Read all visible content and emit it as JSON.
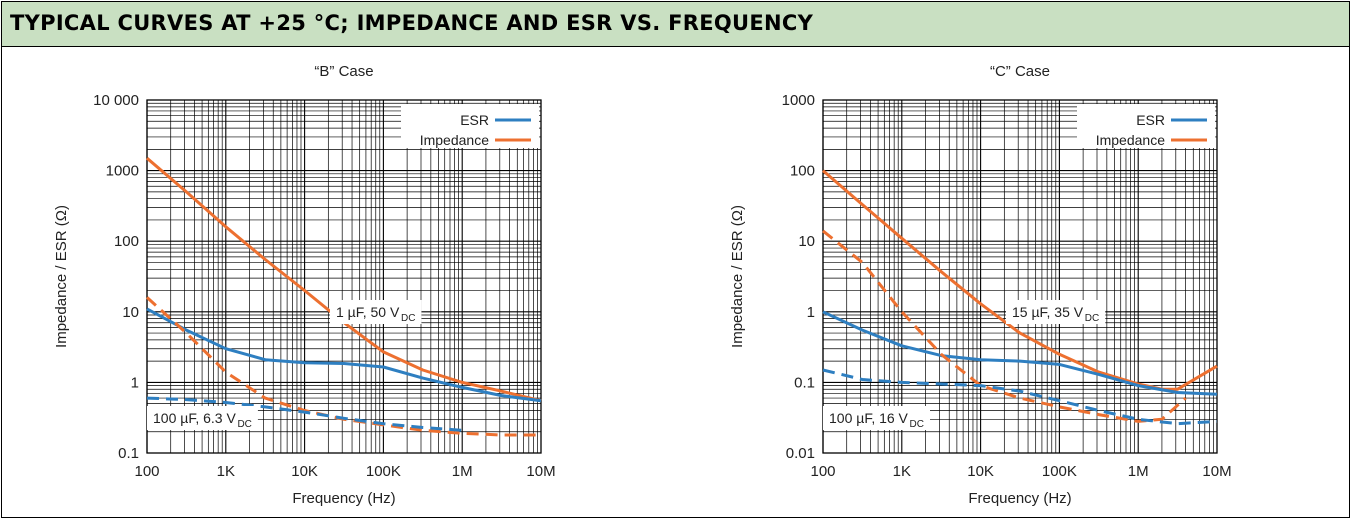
{
  "banner": {
    "title": "TYPICAL CURVES AT +25 °C; IMPEDANCE AND ESR VS. FREQUENCY"
  },
  "colors": {
    "banner_bg": "#c9e0c2",
    "esr": "#2e7fc1",
    "impedance": "#ed7030",
    "grid": "#000000"
  },
  "chart_data": [
    {
      "type": "line",
      "title": "“B” Case",
      "xlabel": "Frequency (Hz)",
      "ylabel": "Impedance / ESR (Ω)",
      "xscale": "log",
      "yscale": "log",
      "xlim": [
        100,
        10000000
      ],
      "ylim": [
        0.1,
        10000
      ],
      "x_ticks": [
        100,
        1000,
        10000,
        100000,
        1000000,
        10000000
      ],
      "x_tick_labels": [
        "100",
        "1K",
        "10K",
        "100K",
        "1M",
        "10M"
      ],
      "y_ticks": [
        0.1,
        1,
        10,
        100,
        1000,
        10000
      ],
      "y_tick_labels": [
        "0.1",
        "1",
        "10",
        "100",
        "1000",
        "10 000"
      ],
      "grid": true,
      "legend": {
        "position": "top-right",
        "entries": [
          {
            "label": "ESR",
            "color": "#2e7fc1"
          },
          {
            "label": "Impedance",
            "color": "#ed7030"
          }
        ]
      },
      "annotations": [
        {
          "text": "1 µF, 50 V",
          "sub": "DC",
          "near": "solid curves"
        },
        {
          "text": "100 µF, 6.3 V",
          "sub": "DC",
          "near": "dashed curves"
        }
      ],
      "series": [
        {
          "part": "1 µF, 50 VDC",
          "kind": "Impedance",
          "color": "#ed7030",
          "dashed": false,
          "x": [
            100,
            316,
            1000,
            3162,
            10000,
            31620,
            100000,
            316200,
            1000000,
            3162000,
            10000000
          ],
          "y": [
            1500,
            500,
            160,
            55,
            20,
            7,
            2.7,
            1.5,
            1.0,
            0.75,
            0.55
          ]
        },
        {
          "part": "1 µF, 50 VDC",
          "kind": "ESR",
          "color": "#2e7fc1",
          "dashed": false,
          "x": [
            100,
            316,
            1000,
            3162,
            10000,
            31620,
            100000,
            316200,
            1000000,
            3162000,
            10000000
          ],
          "y": [
            11,
            5.5,
            3.0,
            2.1,
            1.9,
            1.85,
            1.65,
            1.15,
            0.85,
            0.65,
            0.55
          ]
        },
        {
          "part": "100 µF, 6.3 VDC",
          "kind": "Impedance",
          "color": "#ed7030",
          "dashed": true,
          "x": [
            100,
            316,
            1000,
            3162,
            10000,
            31620,
            100000,
            316200,
            1000000,
            3162000,
            10000000
          ],
          "y": [
            16,
            5,
            1.4,
            0.6,
            0.4,
            0.3,
            0.25,
            0.21,
            0.19,
            0.18,
            0.18
          ]
        },
        {
          "part": "100 µF, 6.3 VDC",
          "kind": "ESR",
          "color": "#2e7fc1",
          "dashed": true,
          "x": [
            100,
            316,
            1000,
            3162,
            10000,
            31620,
            100000,
            316200,
            1000000
          ],
          "y": [
            0.6,
            0.57,
            0.52,
            0.45,
            0.38,
            0.31,
            0.26,
            0.23,
            0.21
          ]
        }
      ]
    },
    {
      "type": "line",
      "title": "“C” Case",
      "xlabel": "Frequency (Hz)",
      "ylabel": "Impedance / ESR (Ω)",
      "xscale": "log",
      "yscale": "log",
      "xlim": [
        100,
        10000000
      ],
      "ylim": [
        0.01,
        1000
      ],
      "x_ticks": [
        100,
        1000,
        10000,
        100000,
        1000000,
        10000000
      ],
      "x_tick_labels": [
        "100",
        "1K",
        "10K",
        "100K",
        "1M",
        "10M"
      ],
      "y_ticks": [
        0.01,
        0.1,
        1,
        10,
        100,
        1000
      ],
      "y_tick_labels": [
        "0.01",
        "0.1",
        "1",
        "10",
        "100",
        "1000"
      ],
      "grid": true,
      "legend": {
        "position": "top-right",
        "entries": [
          {
            "label": "ESR",
            "color": "#2e7fc1"
          },
          {
            "label": "Impedance",
            "color": "#ed7030"
          }
        ]
      },
      "annotations": [
        {
          "text": "15 µF, 35 V",
          "sub": "DC",
          "near": "solid curves"
        },
        {
          "text": "100 µF, 16 V",
          "sub": "DC",
          "near": "dashed curves"
        }
      ],
      "series": [
        {
          "part": "15 µF, 35 VDC",
          "kind": "Impedance",
          "color": "#ed7030",
          "dashed": false,
          "x": [
            100,
            316,
            1000,
            3162,
            10000,
            31620,
            100000,
            316200,
            1000000,
            2000000,
            3162000,
            10000000
          ],
          "y": [
            100,
            33,
            11,
            3.7,
            1.3,
            0.5,
            0.25,
            0.14,
            0.095,
            0.08,
            0.08,
            0.17
          ]
        },
        {
          "part": "15 µF, 35 VDC",
          "kind": "ESR",
          "color": "#2e7fc1",
          "dashed": false,
          "x": [
            100,
            316,
            1000,
            3162,
            10000,
            31620,
            100000,
            316200,
            1000000,
            3162000,
            10000000
          ],
          "y": [
            1.0,
            0.55,
            0.33,
            0.24,
            0.21,
            0.2,
            0.18,
            0.13,
            0.09,
            0.072,
            0.068
          ]
        },
        {
          "part": "100 µF, 16 VDC",
          "kind": "Impedance",
          "color": "#ed7030",
          "dashed": true,
          "x": [
            100,
            316,
            1000,
            3162,
            10000,
            31620,
            100000,
            316200,
            1000000,
            2000000,
            4000000
          ],
          "y": [
            14,
            5,
            1.0,
            0.25,
            0.09,
            0.06,
            0.045,
            0.035,
            0.028,
            0.03,
            0.06
          ]
        },
        {
          "part": "100 µF, 16 VDC",
          "kind": "ESR",
          "color": "#2e7fc1",
          "dashed": true,
          "x": [
            100,
            316,
            1000,
            3162,
            10000,
            31620,
            100000,
            316200,
            1000000,
            3162000,
            10000000
          ],
          "y": [
            0.15,
            0.11,
            0.1,
            0.095,
            0.09,
            0.075,
            0.055,
            0.04,
            0.03,
            0.026,
            0.028
          ]
        }
      ]
    }
  ]
}
